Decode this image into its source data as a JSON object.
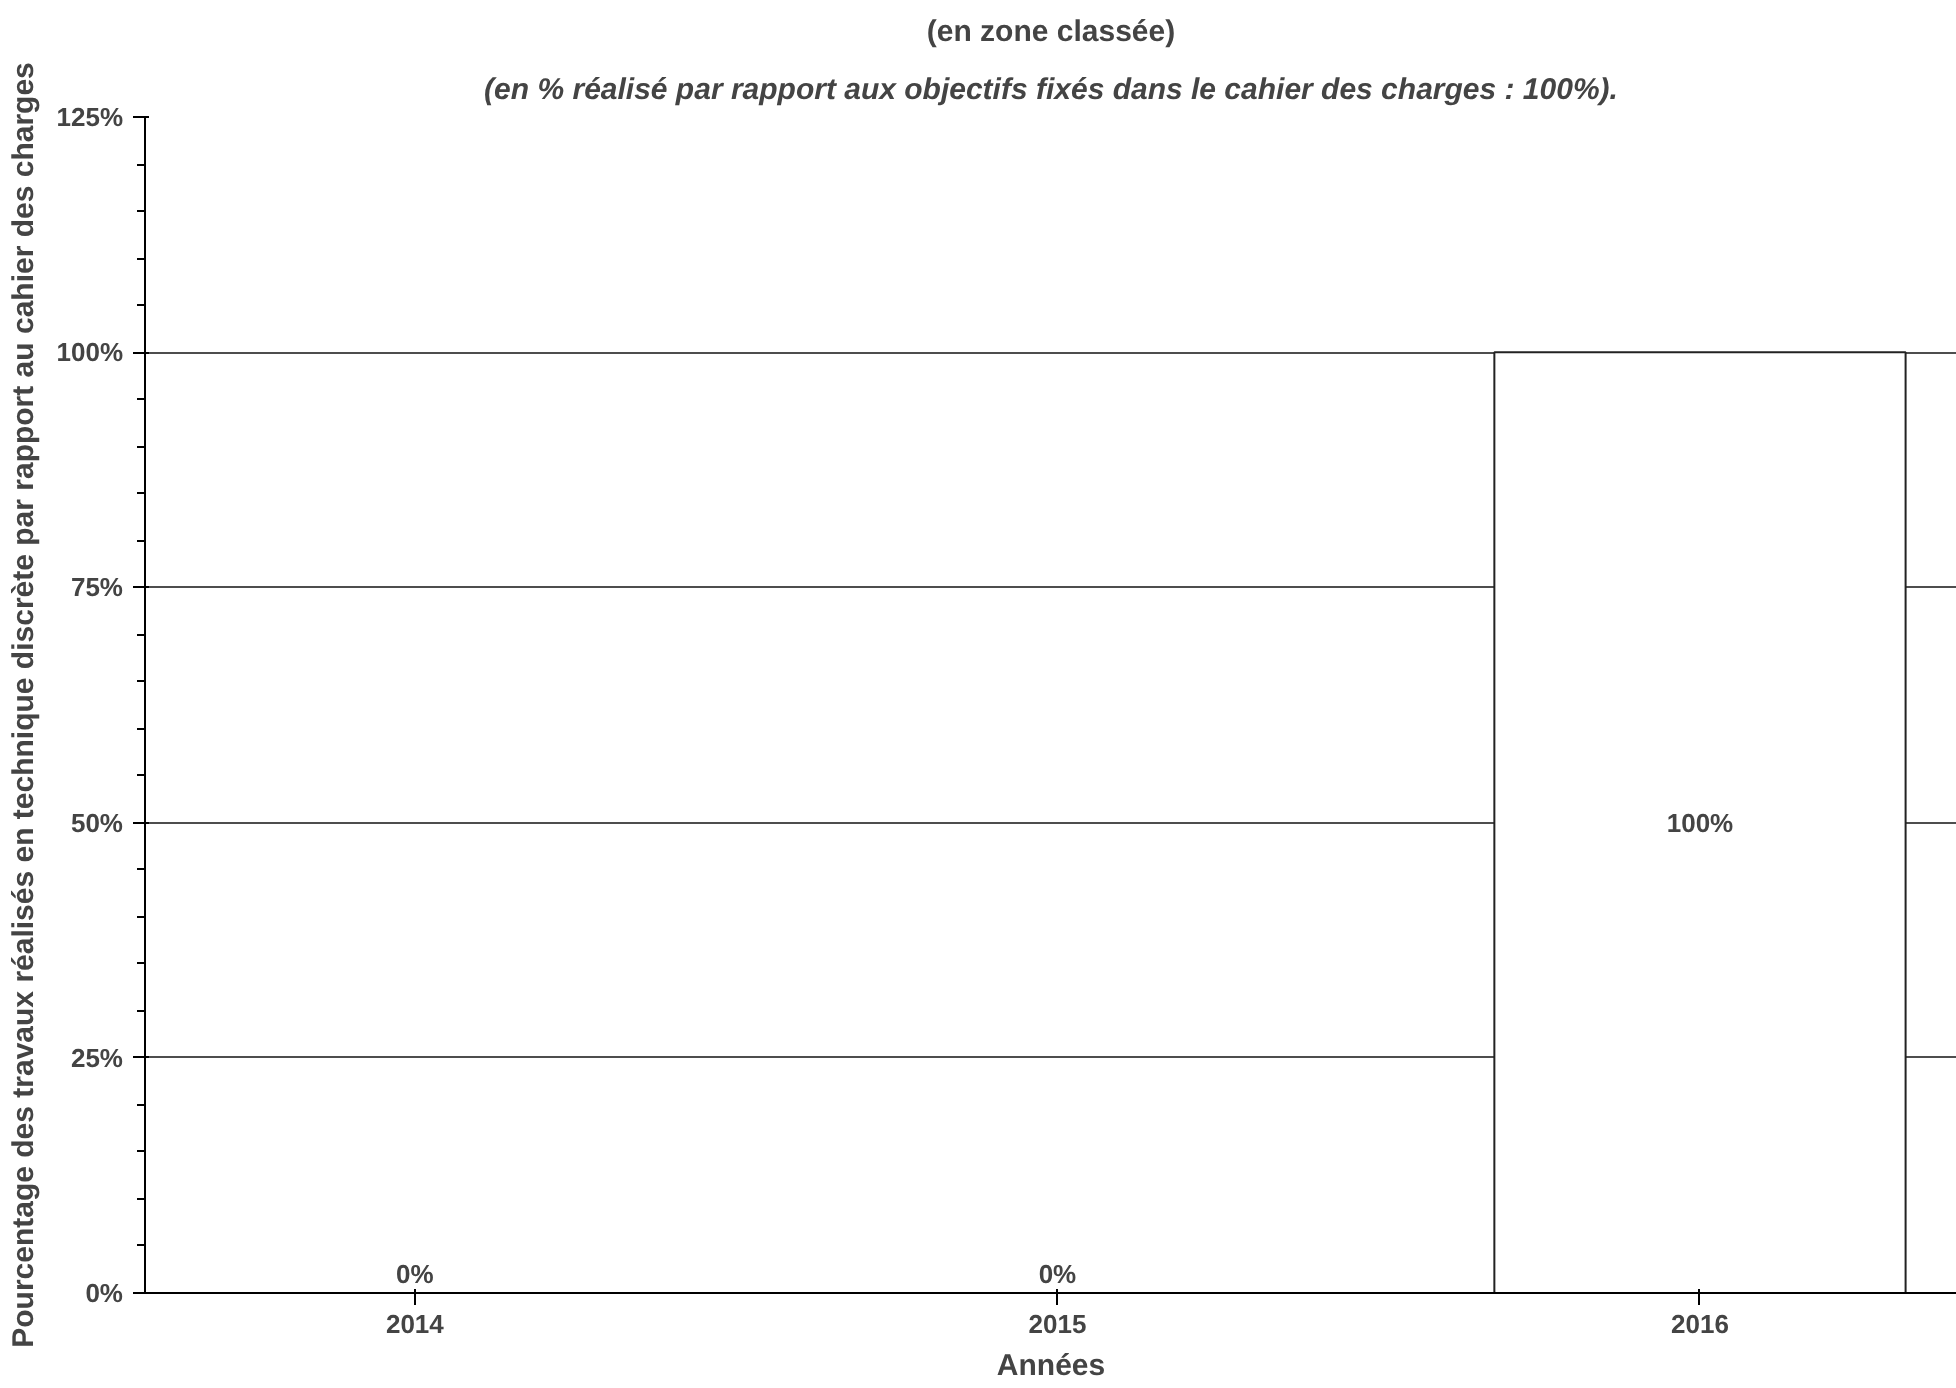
{
  "chart_data": {
    "type": "bar",
    "title": "(en zone classée)",
    "subtitle": "(en % réalisé par rapport aux objectifs fixés dans le cahier des charges : 100%).",
    "xlabel": "Années",
    "ylabel": "Pourcentage des travaux réalisés en technique discrète par rapport au cahier des charges",
    "categories": [
      "2014",
      "2015",
      "2016"
    ],
    "values": [
      0,
      0,
      100
    ],
    "color": "#ffffff",
    "data_labels": true,
    "value_labels": [
      "0%",
      "0%",
      "100%"
    ],
    "ylim": [
      0,
      125
    ],
    "yticks": [
      {
        "value": 0,
        "label": "0%"
      },
      {
        "value": 25,
        "label": "25%"
      },
      {
        "value": 50,
        "label": "50%"
      },
      {
        "value": 75,
        "label": "75%"
      },
      {
        "value": 100,
        "label": "100%"
      },
      {
        "value": 125,
        "label": "125%"
      }
    ],
    "grid": "y"
  }
}
